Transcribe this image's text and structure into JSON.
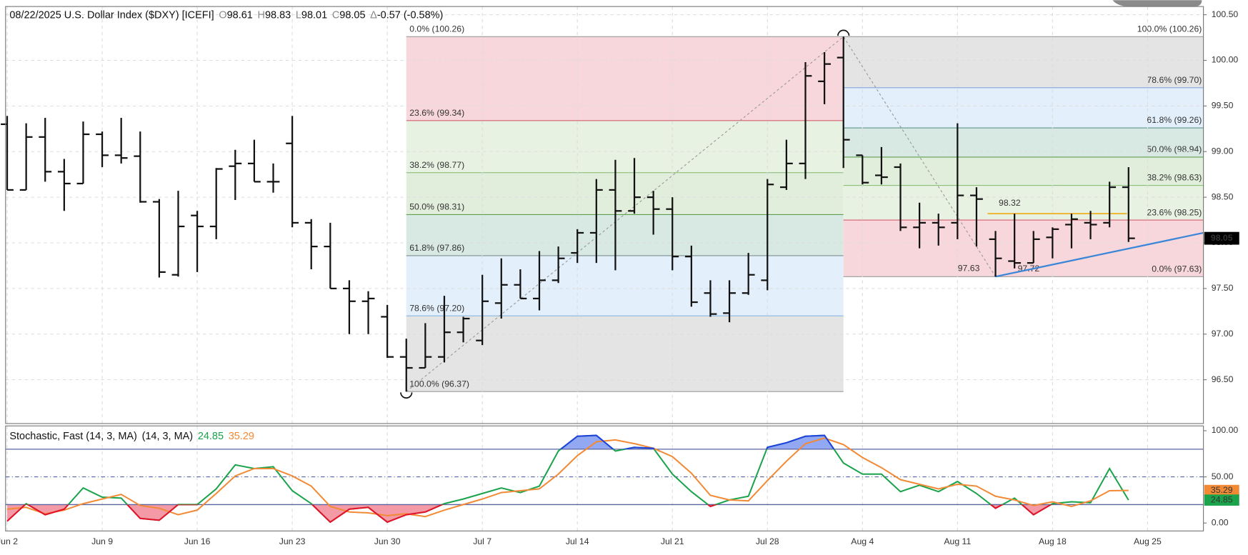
{
  "chart_data": [
    {
      "type": "ohlc",
      "title": "08/22/2025 U.S. Dollar Index ($DXY) [ICEFI]",
      "ohlc_labels": [
        "O",
        "H",
        "L",
        "C"
      ],
      "change_label": "Δ",
      "change": "-0.57 (-0.58%)",
      "categories": [
        "Jun 2",
        null,
        null,
        null,
        null,
        "Jun 9",
        null,
        null,
        null,
        null,
        "Jun 16",
        null,
        null,
        null,
        null,
        "Jun 23",
        null,
        null,
        null,
        null,
        "Jun 30",
        null,
        null,
        null,
        null,
        "Jul 7",
        null,
        null,
        null,
        null,
        "Jul 14",
        null,
        null,
        null,
        null,
        "Jul 21",
        null,
        null,
        null,
        null,
        "Jul 28",
        null,
        null,
        null,
        null,
        "Aug 4",
        null,
        null,
        null,
        null,
        "Aug 11",
        null,
        null,
        null,
        null,
        "Aug 18",
        null,
        null,
        null,
        null,
        "Aug 25",
        null,
        null,
        null,
        null
      ],
      "open": [
        99.3,
        98.58,
        99.16,
        98.78,
        98.65,
        99.19,
        98.96,
        98.95,
        98.45,
        97.65,
        98.3,
        98.18,
        98.84,
        98.87,
        98.67,
        99.09,
        98.22,
        97.96,
        97.5,
        97.36,
        97.19,
        96.75,
        96.63,
        96.75,
        97.02,
        96.93,
        97.34,
        97.54,
        97.39,
        97.59,
        97.89,
        98.11,
        98.58,
        98.35,
        98.5,
        98.37,
        97.85,
        97.45,
        97.23,
        97.45,
        97.59,
        98.61,
        98.87,
        99.77,
        100.03,
        98.96,
        98.74,
        98.83,
        98.17,
        98.22,
        98.22,
        98.52,
        98.04,
        97.8,
        97.78,
        98.06,
        98.2,
        98.22,
        98.22,
        98.61,
        null,
        null,
        null,
        null,
        null
      ],
      "high": [
        99.39,
        99.31,
        99.37,
        98.92,
        99.33,
        99.22,
        99.37,
        99.22,
        98.48,
        98.57,
        98.35,
        98.82,
        99.02,
        99.13,
        98.87,
        99.39,
        98.26,
        98.22,
        97.59,
        97.47,
        97.32,
        96.95,
        97.12,
        97.42,
        97.19,
        97.65,
        97.83,
        97.71,
        97.91,
        97.96,
        98.15,
        98.7,
        98.91,
        98.93,
        98.57,
        98.5,
        97.97,
        97.59,
        97.59,
        97.89,
        98.7,
        99.13,
        99.98,
        100.09,
        100.26,
        98.96,
        99.05,
        98.87,
        98.44,
        98.32,
        99.31,
        98.61,
        98.13,
        98.32,
        98.13,
        98.17,
        98.32,
        98.35,
        98.67,
        98.83,
        null,
        null,
        null,
        null,
        null
      ],
      "low": [
        98.58,
        98.58,
        98.67,
        98.35,
        98.65,
        98.83,
        98.87,
        98.44,
        97.62,
        97.63,
        97.68,
        98.04,
        98.47,
        98.67,
        98.55,
        98.17,
        97.71,
        97.5,
        97.0,
        97.0,
        96.74,
        96.37,
        96.63,
        96.69,
        96.91,
        96.88,
        97.17,
        97.39,
        97.26,
        97.56,
        97.78,
        97.78,
        97.7,
        98.32,
        98.09,
        97.7,
        97.3,
        97.19,
        97.13,
        97.43,
        97.48,
        98.58,
        98.7,
        99.52,
        98.82,
        98.64,
        98.64,
        98.13,
        97.94,
        97.97,
        98.04,
        97.96,
        97.63,
        97.72,
        97.78,
        97.83,
        97.94,
        98.04,
        98.17,
        98.01,
        null,
        null,
        null,
        null,
        null
      ],
      "close": [
        98.58,
        99.16,
        98.78,
        98.65,
        99.19,
        98.96,
        98.93,
        98.45,
        97.68,
        98.18,
        98.18,
        98.81,
        98.87,
        98.67,
        98.67,
        98.22,
        97.96,
        97.5,
        97.36,
        97.39,
        96.75,
        96.63,
        96.75,
        97.02,
        97.17,
        97.36,
        97.54,
        97.39,
        97.59,
        97.83,
        98.11,
        98.58,
        98.35,
        98.5,
        98.37,
        97.85,
        97.35,
        97.22,
        97.45,
        97.65,
        98.64,
        98.87,
        99.83,
        99.96,
        99.13,
        98.66,
        98.72,
        98.17,
        98.22,
        98.17,
        98.52,
        98.48,
        97.83,
        97.78,
        98.04,
        98.15,
        98.26,
        98.2,
        98.61,
        98.05,
        null,
        null,
        null,
        null,
        null
      ],
      "color": "#111111",
      "ylim": [
        96.02,
        100.59
      ],
      "yticks": [
        {
          "value": 96.5,
          "label": "96.50"
        },
        {
          "value": 97,
          "label": "97.00"
        },
        {
          "value": 97.5,
          "label": "97.50"
        },
        {
          "value": 98,
          "label": "98.00"
        },
        {
          "value": 98.5,
          "label": "98.50"
        },
        {
          "value": 99,
          "label": "99.00"
        },
        {
          "value": 99.5,
          "label": "99.50"
        },
        {
          "value": 100,
          "label": "100.00"
        },
        {
          "value": 100.5,
          "label": "100.50"
        }
      ],
      "grid": true,
      "fib_retracements": [
        {
          "levels": [
            {
              "value": 100.26,
              "label": "0.0% (100.26)",
              "color": "#9a9a9a"
            },
            {
              "value": 99.34,
              "label": "23.6% (99.34)",
              "color": "#d0606f"
            },
            {
              "value": 98.77,
              "label": "38.2% (98.77)",
              "color": "#8cc07a"
            },
            {
              "value": 98.31,
              "label": "50.0% (98.31)",
              "color": "#5f9f50"
            },
            {
              "value": 97.86,
              "label": "61.8% (97.86)",
              "color": "#7f8f90"
            },
            {
              "value": 97.2,
              "label": "78.6% (97.20)",
              "color": "#8ab8e0"
            },
            {
              "value": 96.37,
              "label": "100.0% (96.37)",
              "color": "#9a9a9a"
            }
          ],
          "band_colors": [
            "#f8d7dc",
            "#e8f2e2",
            "#e2eedc",
            "#d8e9e3",
            "#e3effb",
            "#e4e4e4"
          ]
        },
        {
          "levels": [
            {
              "value": 100.26,
              "label": "100.0% (100.26)",
              "color": "#9a9a9a"
            },
            {
              "value": 99.7,
              "label": "78.6% (99.70)",
              "color": "#7fa6dc"
            },
            {
              "value": 99.26,
              "label": "61.8% (99.26)",
              "color": "#5f958b"
            },
            {
              "value": 98.94,
              "label": "50.0% (98.94)",
              "color": "#5f9f50"
            },
            {
              "value": 98.63,
              "label": "38.2% (98.63)",
              "color": "#8cc07a"
            },
            {
              "value": 98.25,
              "label": "23.6% (98.25)",
              "color": "#d0606f"
            },
            {
              "value": 97.63,
              "label": "0.0% (97.63)",
              "color": "#9a9a9a"
            }
          ],
          "band_colors": [
            "#e4e4e4",
            "#e3effb",
            "#d8e9e3",
            "#e2eedc",
            "#e8f2e2",
            "#f8d7dc"
          ]
        }
      ],
      "resistance": {
        "value": 98.32,
        "label": "98.32",
        "color": "#f0b020"
      },
      "low_labels": [
        {
          "value": 97.63,
          "label": "97.63"
        },
        {
          "value": 97.72,
          "label": "97.72"
        }
      ],
      "trendline": {
        "values": [
          97.63,
          98.11
        ],
        "color": "#3a86d8"
      }
    },
    {
      "type": "line",
      "title": "Stochastic, Fast (14, 3, MA)",
      "subtitle": "(14, 3, MA)",
      "series": [
        {
          "color": "#1aa34a",
          "values": [
            2,
            21,
            9,
            15,
            38,
            28,
            27,
            5,
            3,
            20,
            20,
            37,
            63,
            59,
            61,
            35,
            21,
            1,
            15,
            17,
            1,
            9,
            12,
            21,
            26,
            32,
            38,
            33,
            40,
            78,
            94,
            95,
            78,
            82,
            81,
            53,
            34,
            18,
            25,
            29,
            82,
            87,
            94,
            95,
            65,
            53,
            53,
            34,
            41,
            34,
            45,
            32,
            16,
            27,
            9,
            21,
            23,
            22,
            59,
            24.85,
            null,
            null,
            null,
            null,
            null
          ]
        },
        {
          "color": "#f28a35",
          "values": [
            15,
            17,
            10,
            14,
            21,
            26,
            31,
            19,
            16,
            9,
            14,
            32,
            51,
            59,
            59,
            51,
            40,
            18,
            12,
            11,
            8,
            10,
            7,
            14,
            20,
            26,
            33,
            35,
            37,
            53,
            73,
            88,
            90,
            86,
            81,
            72,
            54,
            30,
            25,
            24,
            46,
            67,
            86,
            92,
            85,
            71,
            60,
            47,
            42,
            37,
            42,
            40,
            29,
            25,
            19,
            23,
            18,
            24,
            35,
            35.29,
            null,
            null,
            null,
            null,
            null
          ]
        }
      ],
      "ylim": [
        -8.6,
        105.2
      ],
      "yticks": [
        {
          "value": 0,
          "label": "0.00"
        },
        {
          "value": 50,
          "label": "50.00"
        },
        {
          "value": 100,
          "label": "100.00"
        }
      ],
      "bands": [
        80,
        20
      ],
      "band_colors": [
        "#2040e0",
        "#e8102a"
      ],
      "band_fills": [
        "#93a8f2",
        "#f39aa6"
      ]
    }
  ]
}
